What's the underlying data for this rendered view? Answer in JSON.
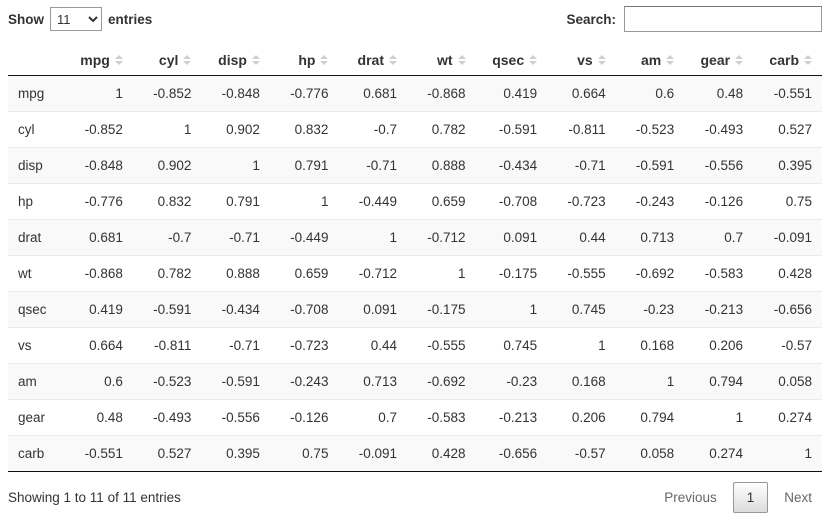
{
  "controls": {
    "show_label": "Show",
    "entries_label": "entries",
    "page_length_value": "11",
    "search_label": "Search:",
    "search_value": ""
  },
  "table": {
    "columns": [
      "mpg",
      "cyl",
      "disp",
      "hp",
      "drat",
      "wt",
      "qsec",
      "vs",
      "am",
      "gear",
      "carb"
    ],
    "rows": [
      {
        "label": "mpg",
        "values": [
          "1",
          "-0.852",
          "-0.848",
          "-0.776",
          "0.681",
          "-0.868",
          "0.419",
          "0.664",
          "0.6",
          "0.48",
          "-0.551"
        ]
      },
      {
        "label": "cyl",
        "values": [
          "-0.852",
          "1",
          "0.902",
          "0.832",
          "-0.7",
          "0.782",
          "-0.591",
          "-0.811",
          "-0.523",
          "-0.493",
          "0.527"
        ]
      },
      {
        "label": "disp",
        "values": [
          "-0.848",
          "0.902",
          "1",
          "0.791",
          "-0.71",
          "0.888",
          "-0.434",
          "-0.71",
          "-0.591",
          "-0.556",
          "0.395"
        ]
      },
      {
        "label": "hp",
        "values": [
          "-0.776",
          "0.832",
          "0.791",
          "1",
          "-0.449",
          "0.659",
          "-0.708",
          "-0.723",
          "-0.243",
          "-0.126",
          "0.75"
        ]
      },
      {
        "label": "drat",
        "values": [
          "0.681",
          "-0.7",
          "-0.71",
          "-0.449",
          "1",
          "-0.712",
          "0.091",
          "0.44",
          "0.713",
          "0.7",
          "-0.091"
        ]
      },
      {
        "label": "wt",
        "values": [
          "-0.868",
          "0.782",
          "0.888",
          "0.659",
          "-0.712",
          "1",
          "-0.175",
          "-0.555",
          "-0.692",
          "-0.583",
          "0.428"
        ]
      },
      {
        "label": "qsec",
        "values": [
          "0.419",
          "-0.591",
          "-0.434",
          "-0.708",
          "0.091",
          "-0.175",
          "1",
          "0.745",
          "-0.23",
          "-0.213",
          "-0.656"
        ]
      },
      {
        "label": "vs",
        "values": [
          "0.664",
          "-0.811",
          "-0.71",
          "-0.723",
          "0.44",
          "-0.555",
          "0.745",
          "1",
          "0.168",
          "0.206",
          "-0.57"
        ]
      },
      {
        "label": "am",
        "values": [
          "0.6",
          "-0.523",
          "-0.591",
          "-0.243",
          "0.713",
          "-0.692",
          "-0.23",
          "0.168",
          "1",
          "0.794",
          "0.058"
        ]
      },
      {
        "label": "gear",
        "values": [
          "0.48",
          "-0.493",
          "-0.556",
          "-0.126",
          "0.7",
          "-0.583",
          "-0.213",
          "0.206",
          "0.794",
          "1",
          "0.274"
        ]
      },
      {
        "label": "carb",
        "values": [
          "-0.551",
          "0.527",
          "0.395",
          "0.75",
          "-0.091",
          "0.428",
          "-0.656",
          "-0.57",
          "0.058",
          "0.274",
          "1"
        ]
      }
    ]
  },
  "footer": {
    "info": "Showing 1 to 11 of 11 entries",
    "previous_label": "Previous",
    "current_page": "1",
    "next_label": "Next"
  },
  "colors": {
    "text": "#333333",
    "stripe": "#f9f9f9",
    "header_border": "#111111",
    "row_border": "#eaeaea",
    "sort_icon": "#cfcfcf",
    "disabled_button_text": "#666666",
    "current_button_border": "#979797",
    "current_button_gradient_end": "#dcdcdc"
  }
}
